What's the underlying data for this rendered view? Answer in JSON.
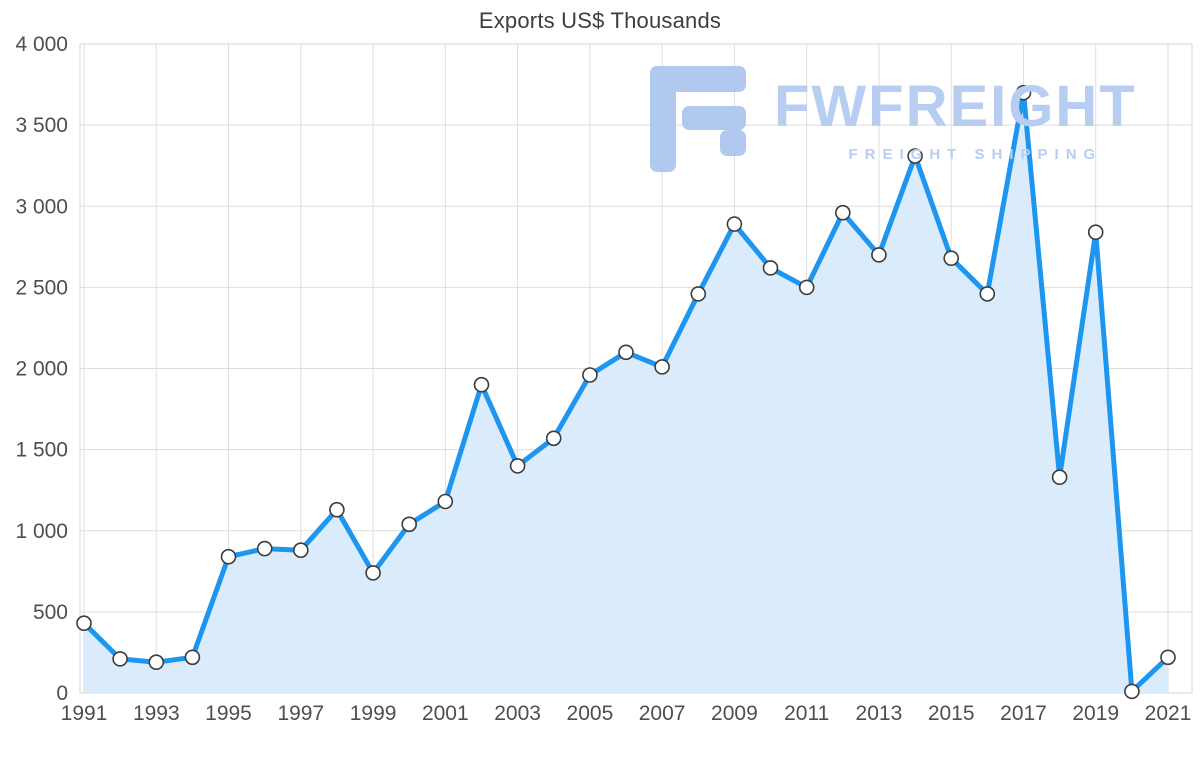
{
  "chart_data": {
    "type": "area",
    "title": "Exports US$ Thousands",
    "xlabel": "",
    "ylabel": "",
    "x": [
      1991,
      1992,
      1993,
      1994,
      1995,
      1996,
      1997,
      1998,
      1999,
      2000,
      2001,
      2002,
      2003,
      2004,
      2005,
      2006,
      2007,
      2008,
      2009,
      2010,
      2011,
      2012,
      2013,
      2014,
      2015,
      2016,
      2017,
      2018,
      2019,
      2020,
      2021
    ],
    "values": [
      430,
      210,
      190,
      220,
      840,
      890,
      880,
      1130,
      740,
      1040,
      1180,
      1900,
      1400,
      1570,
      1960,
      2100,
      2010,
      2460,
      2890,
      2620,
      2500,
      2960,
      2700,
      3310,
      2680,
      2460,
      3700,
      1330,
      2840,
      10,
      220
    ],
    "ylim": [
      0,
      4000
    ],
    "ytick_values": [
      0,
      500,
      1000,
      1500,
      2000,
      2500,
      3000,
      3500,
      4000
    ],
    "ytick_labels": [
      "0",
      "500",
      "1 000",
      "1 500",
      "2 000",
      "2 500",
      "3 000",
      "3 500",
      "4 000"
    ],
    "xtick_labels": [
      "1991",
      "1993",
      "1995",
      "1997",
      "1999",
      "2001",
      "2003",
      "2005",
      "2007",
      "2009",
      "2011",
      "2013",
      "2015",
      "2017",
      "2019",
      "2021"
    ],
    "grid": true,
    "legend": "none",
    "line_color": "#1e96f0",
    "area_color": "#daecfb",
    "marker_fill": "#ffffff",
    "marker_stroke": "#3c3c3c",
    "grid_color": "#dedede",
    "border_color": "#d6d6d6",
    "axis_label_color": "#4f4f4f"
  },
  "watermark": {
    "brand": "FWFREIGHT",
    "tagline": "FREIGHT SHIPPING",
    "color": "#b7cdf1"
  }
}
